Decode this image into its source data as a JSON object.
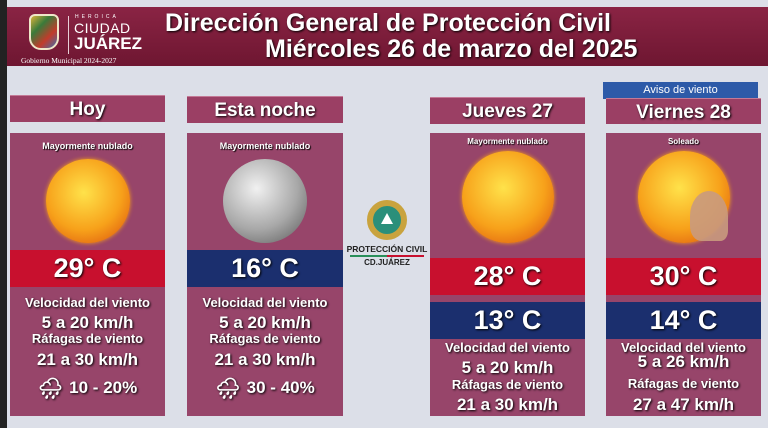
{
  "header": {
    "logo": {
      "heroica": "HEROICA",
      "ciudad": "CIUDAD",
      "juarez": "JUÁREZ",
      "gobierno": "Gobierno Municipal 2024-2027"
    },
    "title": "Dirección General de Protección Civil",
    "date": "Miércoles 26 de marzo del 2025"
  },
  "center_logo": {
    "line1": "PROTECCIÓN CIVIL",
    "line2": "CD.JUÁREZ"
  },
  "colors": {
    "maroon": "#97456a",
    "red": "#c8102e",
    "blue": "#1b2f6e",
    "alert": "#2d5aa8"
  },
  "cards": [
    {
      "title": "Hoy",
      "condition": "Mayormente nublado",
      "icon": "sun-icon",
      "temp_high": "29° C",
      "wind_label": "Velocidad del viento",
      "wind": "5 a 20 km/h",
      "gust_label": "Ráfagas de viento",
      "gust": "21 a 30 km/h",
      "rain": "10 - 20%"
    },
    {
      "title": "Esta noche",
      "condition": "Mayormente nublado",
      "icon": "moon-icon",
      "temp_low": "16° C",
      "wind_label": "Velocidad del viento",
      "wind": "5 a 20 km/h",
      "gust_label": "Ráfagas de viento",
      "gust": "21 a 30 km/h",
      "rain": "30 - 40%"
    },
    {
      "title": "Jueves 27",
      "condition": "Mayormente nublado",
      "icon": "sun-icon",
      "temp_high": "28° C",
      "temp_low": "13° C",
      "wind_label": "Velocidad del viento",
      "wind": "5 a 20 km/h",
      "gust_label": "Ráfagas de viento",
      "gust": "21 a 30 km/h"
    },
    {
      "title": "Viernes 28",
      "alert": "Aviso  de viento",
      "condition": "Soleado",
      "icon": "sun-wind-icon",
      "temp_high": "30° C",
      "temp_low": "14° C",
      "wind_label": "Velocidad del viento",
      "wind": "5 a 26 km/h",
      "gust_label": "Ráfagas de viento",
      "gust": "27 a 47 km/h"
    }
  ]
}
